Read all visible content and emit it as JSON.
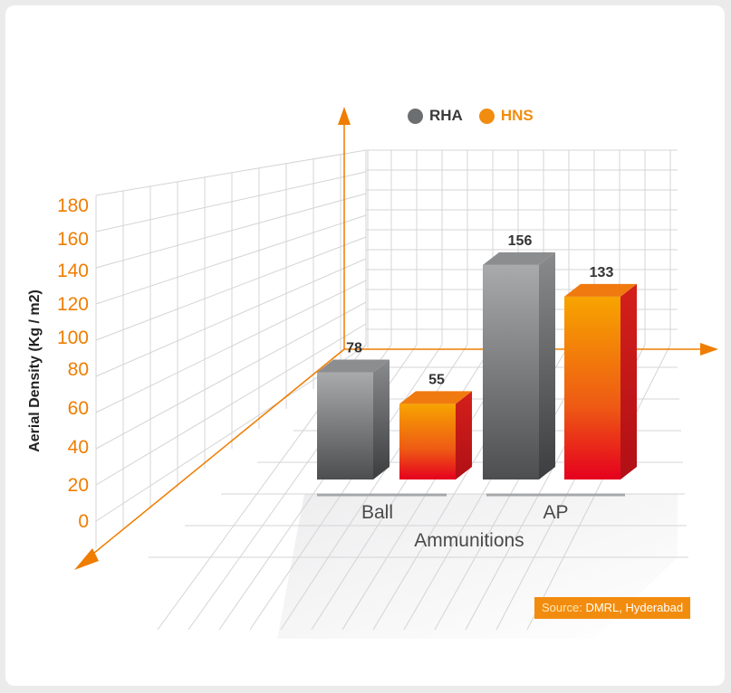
{
  "chart_data": {
    "type": "bar",
    "categories": [
      "Ball",
      "AP"
    ],
    "series": [
      {
        "name": "RHA",
        "values": [
          78,
          156
        ],
        "color": "#6d6e70"
      },
      {
        "name": "HNS",
        "values": [
          55,
          133
        ],
        "color": "#f28c0f"
      }
    ],
    "xlabel": "Ammunitions",
    "ylabel": "Aerial Density (Kg / m2)",
    "ylim": [
      0,
      180
    ],
    "yticks": [
      0,
      20,
      40,
      60,
      80,
      100,
      120,
      140,
      160,
      180
    ],
    "grid": true,
    "legend_position": "top",
    "style": "3d-perspective"
  },
  "source": {
    "label": "Source:",
    "text": "DMRL, Hyderabad"
  },
  "colors": {
    "axis": "#ef7d00",
    "tick": "#ef7d00",
    "source_bg": "#f28c0f"
  }
}
